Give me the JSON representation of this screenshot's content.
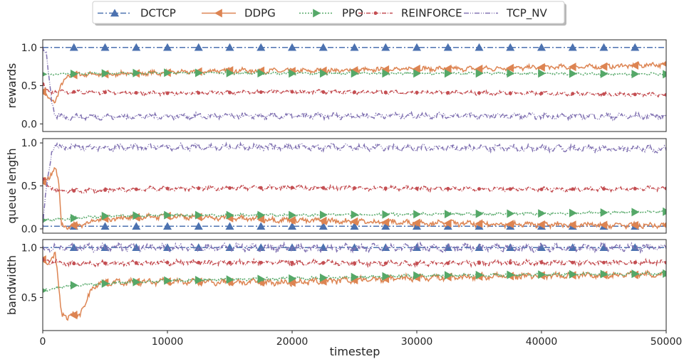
{
  "chart_data": {
    "type": "line",
    "xlabel": "timestep",
    "xlim": [
      0,
      50000
    ],
    "xticks": [
      0,
      10000,
      20000,
      30000,
      40000,
      50000
    ],
    "series_names": [
      "DCTCP",
      "DDPG",
      "PPO",
      "REINFORCE",
      "TCP_NV"
    ],
    "colors": {
      "DCTCP": "#4c72b0",
      "DDPG": "#dd8452",
      "PPO": "#55a868",
      "REINFORCE": "#c44e52",
      "TCP_NV": "#8172b2"
    },
    "legend": "top-center",
    "grid": false,
    "panels": [
      {
        "ylabel": "rewards",
        "ylim": [
          -0.1,
          1.1
        ],
        "yticks": [
          "0.0",
          "0.5",
          "1.0"
        ],
        "series": [
          {
            "name": "DCTCP",
            "x": [
              0,
              50000
            ],
            "y": [
              1.0,
              1.0
            ]
          },
          {
            "name": "DDPG",
            "x": [
              0,
              500,
              1000,
              1500,
              2000,
              3000,
              5000,
              10000,
              15000,
              20000,
              25000,
              30000,
              35000,
              40000,
              45000,
              50000
            ],
            "y": [
              0.42,
              0.32,
              0.3,
              0.5,
              0.63,
              0.65,
              0.65,
              0.67,
              0.7,
              0.69,
              0.7,
              0.72,
              0.72,
              0.74,
              0.75,
              0.78
            ]
          },
          {
            "name": "PPO",
            "x": [
              0,
              5000,
              10000,
              20000,
              30000,
              40000,
              50000
            ],
            "y": [
              0.65,
              0.66,
              0.67,
              0.66,
              0.66,
              0.66,
              0.65
            ]
          },
          {
            "name": "REINFORCE",
            "x": [
              0,
              500,
              1000,
              2000,
              10000,
              20000,
              30000,
              40000,
              50000
            ],
            "y": [
              0.52,
              0.41,
              0.43,
              0.42,
              0.4,
              0.42,
              0.41,
              0.4,
              0.38
            ]
          },
          {
            "name": "TCP_NV",
            "x": [
              0,
              300,
              700,
              1000,
              2000,
              10000,
              20000,
              30000,
              40000,
              50000
            ],
            "y": [
              1.0,
              0.9,
              0.3,
              0.1,
              0.09,
              0.1,
              0.1,
              0.11,
              0.1,
              0.1
            ]
          }
        ]
      },
      {
        "ylabel": "queue length",
        "ylim": [
          -0.05,
          1.05
        ],
        "yticks": [
          "0.0",
          "0.5",
          "1.0"
        ],
        "series": [
          {
            "name": "DCTCP",
            "x": [
              0,
              50000
            ],
            "y": [
              0.03,
              0.03
            ]
          },
          {
            "name": "DDPG",
            "x": [
              0,
              500,
              1000,
              1300,
              1500,
              2000,
              3000,
              5000,
              10000,
              20000,
              30000,
              40000,
              50000
            ],
            "y": [
              0.55,
              0.6,
              0.72,
              0.5,
              0.05,
              0.03,
              0.05,
              0.12,
              0.15,
              0.1,
              0.07,
              0.05,
              0.04
            ]
          },
          {
            "name": "PPO",
            "x": [
              0,
              5000,
              10000,
              20000,
              30000,
              40000,
              50000
            ],
            "y": [
              0.1,
              0.15,
              0.16,
              0.16,
              0.17,
              0.18,
              0.2
            ]
          },
          {
            "name": "REINFORCE",
            "x": [
              0,
              500,
              1000,
              2000,
              10000,
              20000,
              30000,
              40000,
              50000
            ],
            "y": [
              0.58,
              0.5,
              0.45,
              0.44,
              0.47,
              0.48,
              0.47,
              0.46,
              0.47
            ]
          },
          {
            "name": "TCP_NV",
            "x": [
              0,
              300,
              700,
              1000,
              2000,
              10000,
              20000,
              30000,
              40000,
              50000
            ],
            "y": [
              0.0,
              0.5,
              0.9,
              0.95,
              0.95,
              0.95,
              0.95,
              0.94,
              0.94,
              0.93
            ]
          }
        ]
      },
      {
        "ylabel": "bandwidth",
        "ylim": [
          0.17,
          1.08
        ],
        "yticks": [
          "0.5",
          "1.0"
        ],
        "series": [
          {
            "name": "DCTCP",
            "x": [
              0,
              50000
            ],
            "y": [
              1.0,
              1.0
            ]
          },
          {
            "name": "DDPG",
            "x": [
              0,
              500,
              1000,
              1500,
              2000,
              3000,
              3500,
              4000,
              5000,
              10000,
              20000,
              30000,
              40000,
              50000
            ],
            "y": [
              0.88,
              0.85,
              0.93,
              0.35,
              0.3,
              0.35,
              0.45,
              0.62,
              0.65,
              0.66,
              0.65,
              0.7,
              0.72,
              0.73
            ]
          },
          {
            "name": "PPO",
            "x": [
              0,
              2000,
              5000,
              10000,
              20000,
              30000,
              40000,
              50000
            ],
            "y": [
              0.57,
              0.62,
              0.64,
              0.67,
              0.69,
              0.72,
              0.73,
              0.74
            ]
          },
          {
            "name": "REINFORCE",
            "x": [
              0,
              1000,
              2000,
              10000,
              20000,
              30000,
              40000,
              50000
            ],
            "y": [
              0.88,
              0.85,
              0.84,
              0.85,
              0.85,
              0.84,
              0.85,
              0.85
            ]
          },
          {
            "name": "TCP_NV",
            "x": [
              0,
              50000
            ],
            "y": [
              1.0,
              1.0
            ]
          }
        ]
      }
    ]
  }
}
